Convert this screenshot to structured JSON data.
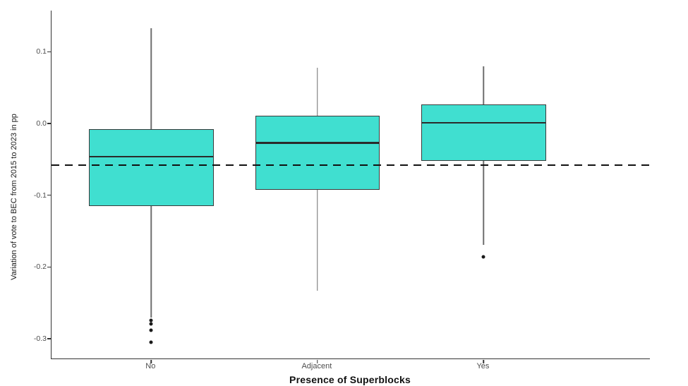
{
  "chart_data": {
    "type": "boxplot",
    "title": "",
    "xlabel": "Presence of Superblocks",
    "ylabel": "Variation of vote to BEC from 2015 to 2023 in pp",
    "categories": [
      "No",
      "Adjacent",
      "Yes"
    ],
    "y_tick_values": [
      0.1,
      0.0,
      -0.1,
      -0.2,
      -0.3
    ],
    "y_tick_labels": [
      "0.1",
      "0.0",
      "-0.1",
      "-0.2",
      "-0.3"
    ],
    "ylim": [
      -0.3274,
      0.1573
    ],
    "grid": false,
    "legend_position": "none",
    "boxes": [
      {
        "category": "No",
        "whisker_low": -0.27,
        "q1": -0.115,
        "median": -0.045,
        "q3": -0.008,
        "whisker_high": 0.133,
        "outliers": [
          -0.274,
          -0.279,
          -0.288,
          -0.305
        ]
      },
      {
        "category": "Adjacent",
        "whisker_low": -0.233,
        "q1": -0.092,
        "median": -0.026,
        "q3": 0.011,
        "whisker_high": 0.078,
        "outliers": []
      },
      {
        "category": "Yes",
        "whisker_low": -0.169,
        "q1": -0.052,
        "median": 0.002,
        "q3": 0.027,
        "whisker_high": 0.08,
        "outliers": [
          -0.186
        ]
      }
    ],
    "reference_line": {
      "value": -0.058,
      "style": "dashed"
    },
    "colors": {
      "box_fill": "#40DFD0",
      "box_border": "#3a3a3a",
      "median": "#2b2b2b",
      "whisker": "#6e6e6e",
      "outlier": "#1a1a1a",
      "axis": "#333333",
      "tick_label": "#4d4d4d",
      "reference": "#111111"
    }
  }
}
